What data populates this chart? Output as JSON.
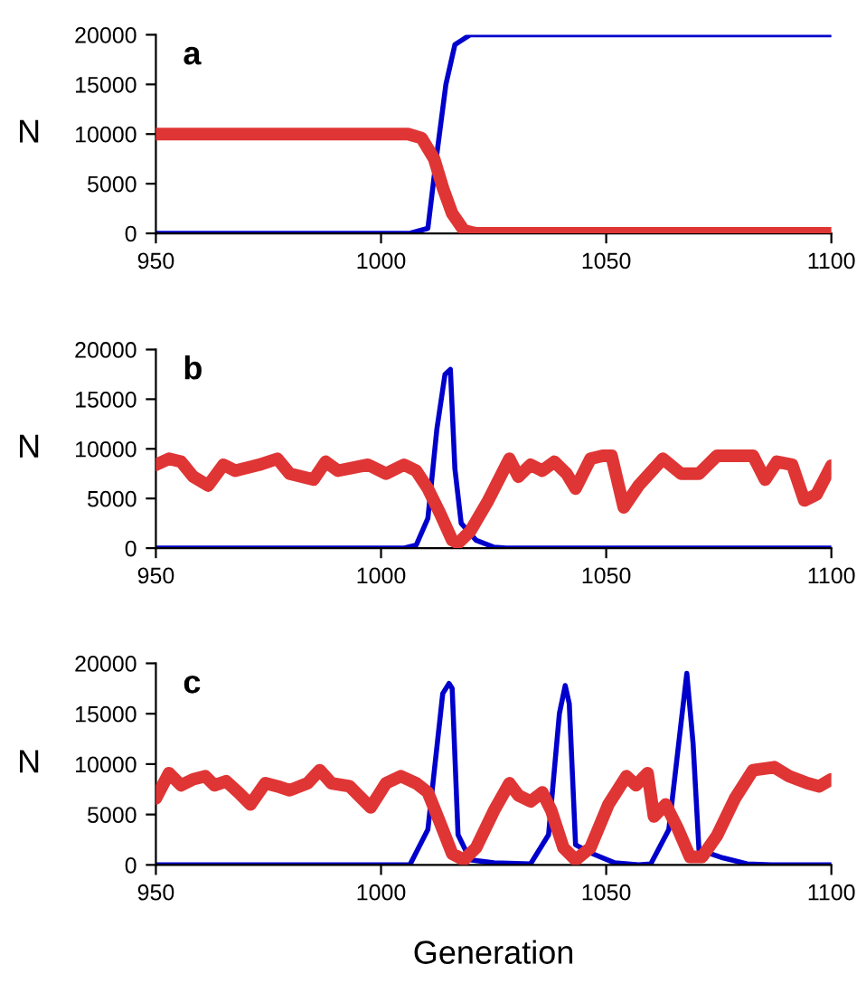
{
  "chart_data": [
    {
      "type": "line",
      "title": "a",
      "ylabel": "N",
      "xlim": [
        950,
        1100
      ],
      "xticks": [
        950,
        1000,
        1050,
        1100
      ],
      "ylim": [
        0,
        20000
      ],
      "yticks": [
        0,
        5000,
        10000,
        15000,
        20000
      ],
      "legend": false,
      "grid": false,
      "series": [
        {
          "color": "#0000cc",
          "x": [
            950,
            1006.4,
            1010.4,
            1012.4,
            1014.4,
            1016.4,
            1019.8,
            1100
          ],
          "values": [
            0,
            0,
            500,
            8000,
            15000,
            19000,
            20000,
            20000
          ]
        },
        {
          "color": "#e03535",
          "x": [
            950,
            1006,
            1009,
            1011.8,
            1013.8,
            1015.8,
            1018.4,
            1021,
            1100
          ],
          "values": [
            10000,
            10000,
            9600,
            7500,
            4500,
            2000,
            300,
            0,
            0
          ]
        }
      ]
    },
    {
      "type": "line",
      "title": "b",
      "ylabel": "N",
      "xlim": [
        950,
        1100
      ],
      "xticks": [
        950,
        1000,
        1050,
        1100
      ],
      "ylim": [
        0,
        20000
      ],
      "yticks": [
        0,
        5000,
        10000,
        15000,
        20000
      ],
      "legend": false,
      "grid": false,
      "series": [
        {
          "color": "#0000cc",
          "x": [
            950,
            1005,
            1007.8,
            1010.4,
            1012.4,
            1014.2,
            1015.4,
            1016.4,
            1017.8,
            1021.1,
            1025.1,
            1027.8,
            1100
          ],
          "values": [
            0,
            0,
            300,
            3000,
            12000,
            17500,
            18000,
            8000,
            2500,
            800,
            100,
            0,
            0
          ]
        },
        {
          "color": "#e03535",
          "x": [
            950,
            952.9,
            955.6,
            958.3,
            961.6,
            965,
            967.6,
            973,
            977,
            979.7,
            985,
            987.7,
            990.4,
            997.1,
            1001.1,
            1005.1,
            1007.8,
            1010.4,
            1013.1,
            1015.8,
            1017.1,
            1019.8,
            1023.8,
            1028.5,
            1030.5,
            1033.2,
            1035.8,
            1038.5,
            1041.2,
            1043.2,
            1046.5,
            1049.2,
            1051.2,
            1053.9,
            1057.2,
            1062.6,
            1066.6,
            1070.6,
            1074.6,
            1082.6,
            1085.3,
            1087.9,
            1091.3,
            1094,
            1096.7,
            1100
          ],
          "values": [
            8400,
            9000,
            8700,
            7200,
            6300,
            8400,
            7800,
            8400,
            9000,
            7500,
            6900,
            8700,
            7800,
            8400,
            7500,
            8400,
            7800,
            6000,
            3500,
            800,
            500,
            1700,
            4800,
            9000,
            7200,
            8400,
            7800,
            8700,
            7500,
            6000,
            9000,
            9300,
            9300,
            4100,
            6300,
            9000,
            7500,
            7500,
            9300,
            9300,
            6900,
            8700,
            8400,
            4800,
            5400,
            8300
          ]
        }
      ]
    },
    {
      "type": "line",
      "title": "c",
      "ylabel": "N",
      "xlabel": "Generation",
      "xlim": [
        950,
        1100
      ],
      "xticks": [
        950,
        1000,
        1050,
        1100
      ],
      "ylim": [
        0,
        20000
      ],
      "yticks": [
        0,
        5000,
        10000,
        15000,
        20000
      ],
      "legend": false,
      "grid": false,
      "series": [
        {
          "color": "#0000cc",
          "x": [
            950,
            1006.4,
            1010.4,
            1013.7,
            1015.1,
            1015.8,
            1017.1,
            1019.8,
            1025.1,
            1033.2,
            1037.2,
            1039.6,
            1040.9,
            1041.8,
            1043.2,
            1046.5,
            1051.9,
            1057.2,
            1059.9,
            1063.9,
            1066.6,
            1067.9,
            1069.3,
            1070.6,
            1075.9,
            1081.3,
            1086.6,
            1100
          ],
          "values": [
            0,
            0,
            3500,
            17000,
            18000,
            17500,
            3000,
            500,
            200,
            100,
            3000,
            15000,
            17800,
            16000,
            2000,
            1200,
            200,
            0,
            100,
            3500,
            14000,
            19000,
            12000,
            1500,
            700,
            100,
            0,
            0
          ]
        },
        {
          "color": "#e03535",
          "x": [
            950,
            952.9,
            955.6,
            958.3,
            961,
            963,
            965.6,
            968.3,
            971,
            974.3,
            977,
            979.7,
            983.7,
            986.4,
            989,
            993,
            995,
            997.7,
            1001.1,
            1004.4,
            1007.8,
            1010.4,
            1013.1,
            1015.8,
            1018.4,
            1021.1,
            1025.1,
            1028.5,
            1030.5,
            1033.2,
            1035.8,
            1037.8,
            1040.5,
            1043.2,
            1046.5,
            1050.5,
            1054.5,
            1056.6,
            1059.2,
            1060.6,
            1063.2,
            1065.9,
            1068.6,
            1071.3,
            1074.6,
            1078.6,
            1082.6,
            1087.3,
            1090.6,
            1094.7,
            1097.3,
            1100
          ],
          "values": [
            6600,
            9100,
            7900,
            8500,
            8800,
            7900,
            8300,
            7200,
            6000,
            8100,
            7800,
            7400,
            8100,
            9400,
            8100,
            7800,
            6900,
            5700,
            8100,
            8800,
            8100,
            7200,
            4200,
            1100,
            500,
            1700,
            5400,
            8100,
            6900,
            6300,
            7200,
            5400,
            1700,
            500,
            1700,
            6000,
            8800,
            7900,
            9100,
            4800,
            6000,
            3600,
            800,
            800,
            2900,
            6600,
            9400,
            9700,
            8800,
            8100,
            7800,
            8500
          ]
        }
      ]
    }
  ]
}
